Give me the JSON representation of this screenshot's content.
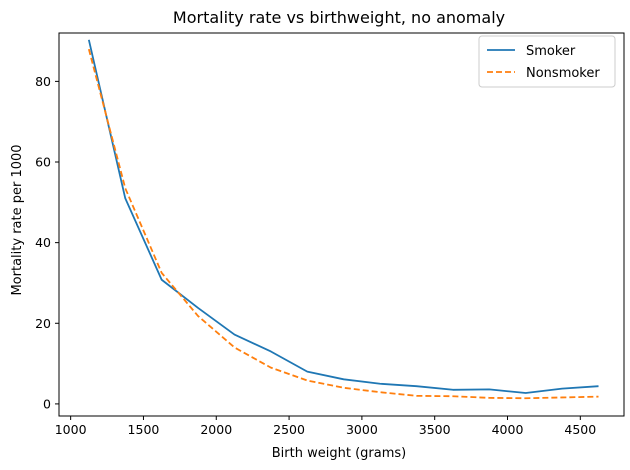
{
  "chart_data": {
    "type": "line",
    "title": "Mortality rate vs birthweight, no anomaly",
    "xlabel": "Birth weight (grams)",
    "ylabel": "Mortality rate per 1000",
    "xlim": [
      920,
      4800
    ],
    "ylim": [
      -3,
      92
    ],
    "xticks": [
      1000,
      1500,
      2000,
      2500,
      3000,
      3500,
      4000,
      4500
    ],
    "yticks": [
      0,
      20,
      40,
      60,
      80
    ],
    "grid": false,
    "legend_position": "top-right",
    "x": [
      1125,
      1375,
      1625,
      1875,
      2125,
      2375,
      2625,
      2875,
      3125,
      3375,
      3625,
      3875,
      4125,
      4375,
      4625
    ],
    "series": [
      {
        "name": "Smoker",
        "color": "#1f77b4",
        "linestyle": "solid",
        "values": [
          90.3,
          51.0,
          30.8,
          23.8,
          17.2,
          13.0,
          8.0,
          6.1,
          5.0,
          4.4,
          3.5,
          3.6,
          2.7,
          3.8,
          4.4
        ]
      },
      {
        "name": "Nonsmoker",
        "color": "#ff7f0e",
        "linestyle": "dashed",
        "values": [
          88.0,
          53.5,
          32.5,
          21.8,
          14.0,
          9.0,
          5.8,
          4.0,
          2.9,
          2.0,
          1.9,
          1.5,
          1.4,
          1.6,
          1.8
        ]
      }
    ]
  }
}
